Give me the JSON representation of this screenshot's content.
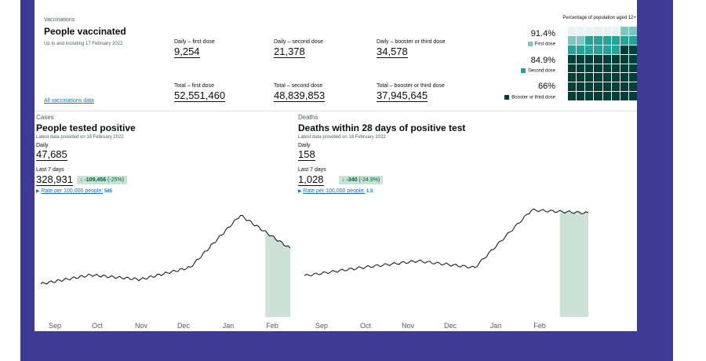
{
  "vaccinations": {
    "section_label": "Vaccinations",
    "title": "People vaccinated",
    "subtitle": "Up to and including 17 February 2022",
    "daily_first_label": "Daily – first dose",
    "daily_first_value": "9,254",
    "daily_second_label": "Daily – second dose",
    "daily_second_value": "21,378",
    "daily_booster_label": "Daily – booster or third dose",
    "daily_booster_value": "34,578",
    "total_first_label": "Total – first dose",
    "total_first_value": "52,551,460",
    "total_second_label": "Total – second dose",
    "total_second_value": "48,839,853",
    "total_booster_label": "Total – booster or third dose",
    "total_booster_value": "37,945,645",
    "link": "All vaccinations data",
    "waffle": {
      "title": "Percentage of population aged 12+",
      "first_pct": "91.4%",
      "first_label": "First dose",
      "second_pct": "84.9%",
      "second_label": "Second dose",
      "booster_pct": "66%",
      "booster_label": "Booster or third dose",
      "first_value": 91.4,
      "second_value": 84.9,
      "booster_value": 66,
      "colors": {
        "first": "#7fc6c1",
        "second": "#28a197",
        "booster": "#003f37"
      }
    }
  },
  "cases": {
    "section_label": "Cases",
    "title": "People tested positive",
    "subtitle": "Latest data provided on 18 February 2022",
    "daily_label": "Daily",
    "daily_value": "47,685",
    "week_label": "Last 7 days",
    "week_value": "328,931",
    "change_value": "-109,456",
    "change_pct": "(-25%)",
    "rate_text": "Rate per 100,000 people:",
    "rate_value": "565",
    "months": [
      "Sep",
      "Oct",
      "Nov",
      "Dec",
      "Jan",
      "Feb"
    ]
  },
  "deaths": {
    "section_label": "Deaths",
    "title": "Deaths within 28 days of positive test",
    "subtitle": "Latest data provided on 18 February 2022",
    "daily_label": "Daily",
    "daily_value": "158",
    "week_label": "Last 7 days",
    "week_value": "1,028",
    "change_value": "-340",
    "change_pct": "(-24.9%)",
    "rate_text": "Rate per 100,000 people:",
    "rate_value": "1.5",
    "months": [
      "Sep",
      "Oct",
      "Nov",
      "Dec",
      "Jan",
      "Feb"
    ]
  },
  "chart_data": [
    {
      "type": "line",
      "x": [
        "Sep",
        "Oct",
        "Nov",
        "Dec",
        "Jan",
        "Feb"
      ],
      "values": [
        300,
        380,
        340,
        450,
        920,
        620
      ],
      "shaded_recent": true
    },
    {
      "type": "line",
      "x": [
        "Sep",
        "Oct",
        "Nov",
        "Dec",
        "Jan",
        "Feb"
      ],
      "values": [
        560,
        670,
        760,
        670,
        1450,
        1410
      ],
      "shaded_recent": true
    }
  ]
}
